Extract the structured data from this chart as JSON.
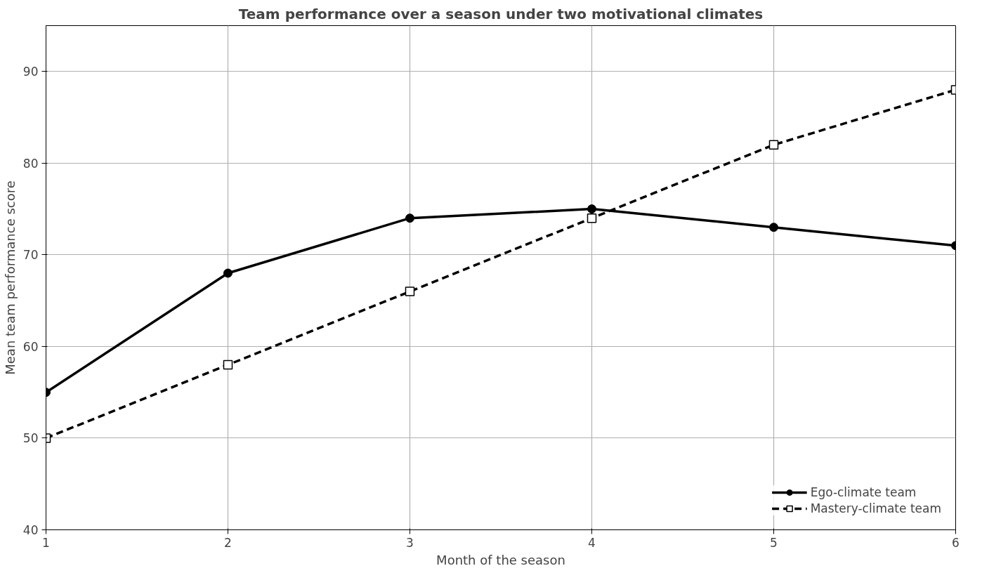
{
  "chart_data": {
    "type": "line",
    "title": "Team performance over a season under two motivational climates",
    "xlabel": "Month of the season",
    "ylabel": "Mean team performance score",
    "x": [
      1,
      2,
      3,
      4,
      5,
      6
    ],
    "series": [
      {
        "name": "Ego-climate team",
        "color": "#000000",
        "values": [
          55,
          68,
          74,
          75,
          73,
          71
        ],
        "marker": "circle",
        "line_style": "solid"
      },
      {
        "name": "Mastery-climate team",
        "color": "#000000",
        "values": [
          50,
          58,
          66,
          74,
          82,
          88
        ],
        "marker": "square",
        "line_style": "dashed"
      }
    ],
    "xlim": [
      1,
      6
    ],
    "ylim": [
      40,
      95
    ],
    "xticks": [
      1,
      2,
      3,
      4,
      5,
      6
    ],
    "yticks": [
      40,
      50,
      60,
      70,
      80,
      90
    ],
    "grid": true,
    "legend": "bottom right"
  }
}
